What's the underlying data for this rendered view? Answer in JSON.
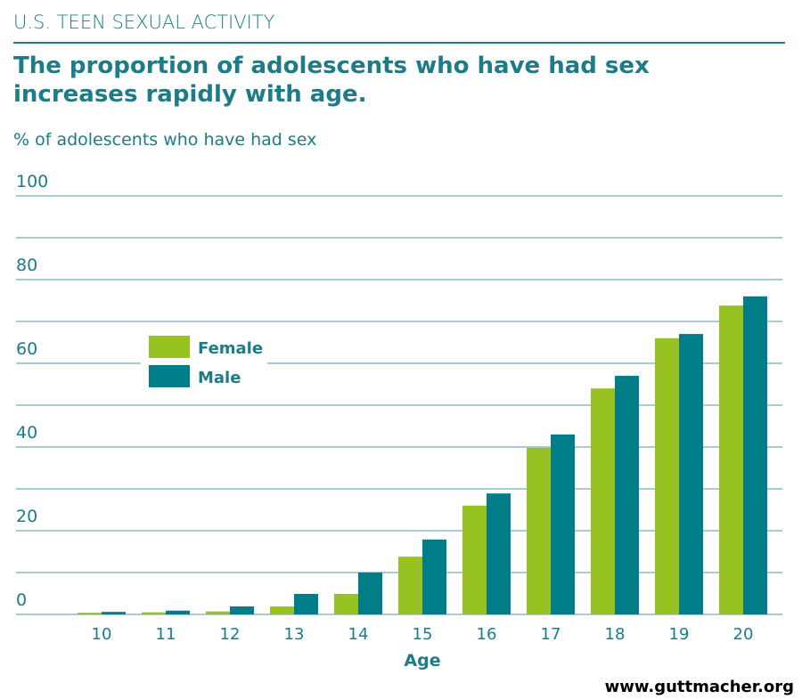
{
  "chart_data": {
    "type": "bar",
    "header": "U.S. TEEN SEXUAL ACTIVITY",
    "title": [
      "The proportion of adolescents who have had sex",
      "increases rapidly with age."
    ],
    "subtitle": "% of adolescents who have had sex",
    "x_label": "Age",
    "source": "www.guttmacher.org",
    "categories": [
      "10",
      "11",
      "12",
      "13",
      "14",
      "15",
      "16",
      "17",
      "18",
      "19",
      "20"
    ],
    "series": [
      {
        "name": "Female",
        "color": "#98c221",
        "values": [
          0.4,
          0.5,
          0.7,
          1.9,
          4.9,
          13.8,
          26,
          39.8,
          54,
          66,
          73.8
        ]
      },
      {
        "name": "Male",
        "color": "#007e88",
        "values": [
          0.6,
          0.9,
          1.9,
          4.9,
          10,
          17.9,
          28.9,
          43,
          57,
          67,
          76
        ]
      }
    ],
    "ylim": [
      0,
      100
    ],
    "yticks": [
      0,
      20,
      40,
      60,
      80,
      100
    ],
    "minor_yticks": [
      10,
      30,
      50,
      70,
      90
    ],
    "grid": true,
    "legend": "upper-left"
  }
}
